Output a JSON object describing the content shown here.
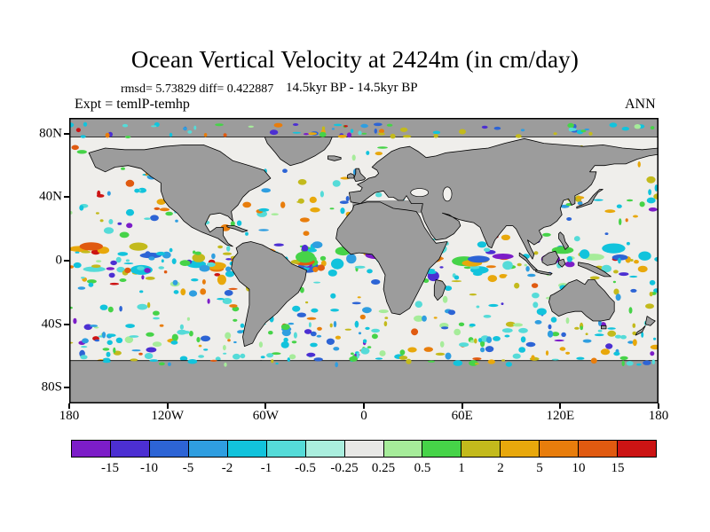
{
  "header": {
    "title": "Ocean Vertical Velocity at 2424m (in cm/day)",
    "stats": "rmsd= 5.73829 diff= 0.422887",
    "period": "14.5kyr BP - 14.5kyr BP",
    "experiment": "Expt = temlP-temhp",
    "season": "ANN"
  },
  "chart_data": {
    "type": "heatmap",
    "subtype": "filled-contour latitude-longitude world map of ocean vertical velocity anomalies",
    "title": "Ocean Vertical Velocity at 2424m (in cm/day)",
    "variable": "ocean vertical velocity",
    "depth": "2424m",
    "units": "cm/day",
    "rmsd": 5.73829,
    "diff": 0.422887,
    "period": "14.5kyr BP - 14.5kyr BP",
    "season": "ANN",
    "experiment": "temlP-temhp",
    "x_axis": {
      "ticks": [
        "180",
        "120W",
        "60W",
        "0",
        "60E",
        "120E",
        "180"
      ],
      "tick_lons": [
        -180,
        -120,
        -60,
        0,
        60,
        120,
        180
      ],
      "range_deg": [
        -180,
        180
      ]
    },
    "y_axis": {
      "ticks": [
        "80N",
        "40N",
        "0",
        "40S",
        "80S"
      ],
      "tick_lats": [
        80,
        40,
        0,
        -40,
        -80
      ],
      "range_deg": [
        -90,
        90
      ]
    },
    "colorbar": {
      "levels": [
        "-15",
        "-10",
        "-5",
        "-2",
        "-1",
        "-0.5",
        "-0.25",
        "0.25",
        "0.5",
        "1",
        "2",
        "5",
        "10",
        "15"
      ],
      "colors": [
        "#7c1dc8",
        "#4c2fd2",
        "#2d64d5",
        "#2f9ee0",
        "#12c3dc",
        "#55dbd8",
        "#aaeede",
        "#e8e8e6",
        "#a6ec9a",
        "#46d348",
        "#c3ba1c",
        "#e8a80c",
        "#e87d0c",
        "#e05a10",
        "#cc1414"
      ],
      "position": "bottom"
    },
    "land_color": "#9c9c9c",
    "ocean_color": "#efeeeb",
    "coastline_color": "#000000",
    "grid": false
  }
}
